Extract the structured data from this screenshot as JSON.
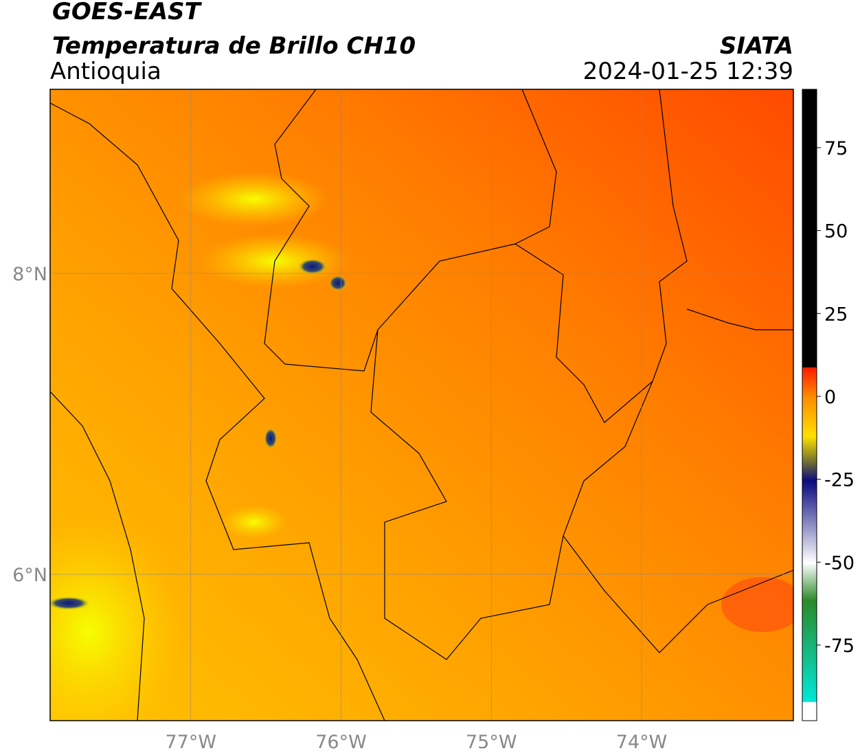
{
  "header": {
    "title": "GOES-EAST",
    "subtitle": "Temperatura de Brillo CH10",
    "region": "Antioquia",
    "agency": "SIATA",
    "timestamp": "2024-01-25 12:39"
  },
  "map": {
    "xlim": [
      -77.936,
      -72.99
    ],
    "ylim": [
      5.027,
      9.224
    ],
    "xticks": [
      {
        "value": -77,
        "label": "77°W"
      },
      {
        "value": -76,
        "label": "76°W"
      },
      {
        "value": -75,
        "label": "75°W"
      },
      {
        "value": -74,
        "label": "74°W"
      }
    ],
    "yticks": [
      {
        "value": 6,
        "label": "6°N"
      },
      {
        "value": 8,
        "label": "8°N"
      }
    ]
  },
  "colorbar": {
    "lim": [
      -97.8,
      92.6
    ],
    "ticks": [
      -75,
      -50,
      -25,
      0,
      25,
      50,
      75
    ]
  }
}
